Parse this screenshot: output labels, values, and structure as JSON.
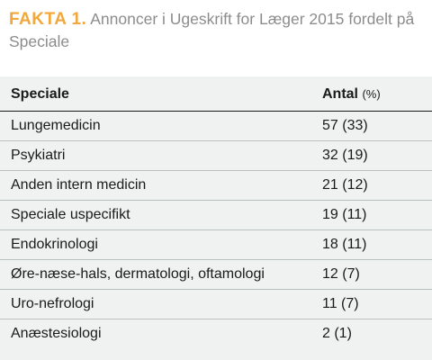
{
  "heading": {
    "label": "FAKTA 1.",
    "title": "Annoncer i Ugeskrift for Læger 2015 fordelt på Speciale"
  },
  "table": {
    "columns": {
      "speciale": "Speciale",
      "antal": "Antal",
      "antal_unit": "(%)"
    },
    "rows": [
      {
        "speciale": "Lungemedicin",
        "antal": "57 (33)"
      },
      {
        "speciale": "Psykiatri",
        "antal": "32 (19)"
      },
      {
        "speciale": "Anden intern medicin",
        "antal": "21 (12)"
      },
      {
        "speciale": "Speciale uspecifikt",
        "antal": "19 (11)"
      },
      {
        "speciale": "Endokrinologi",
        "antal": "18 (11)"
      },
      {
        "speciale": "Øre-næse-hals, dermatologi, oftamologi",
        "antal": "12 (7)"
      },
      {
        "speciale": "Uro-nefrologi",
        "antal": "11 (7)"
      },
      {
        "speciale": "Anæstesiologi",
        "antal": "2 (1)"
      }
    ]
  },
  "colors": {
    "accent": "#f2a73a",
    "heading_text": "#8c8c8c",
    "panel_background": "#f0f1f1",
    "row_divider": "#b9c0c2",
    "body_text": "#1a1a1a"
  }
}
